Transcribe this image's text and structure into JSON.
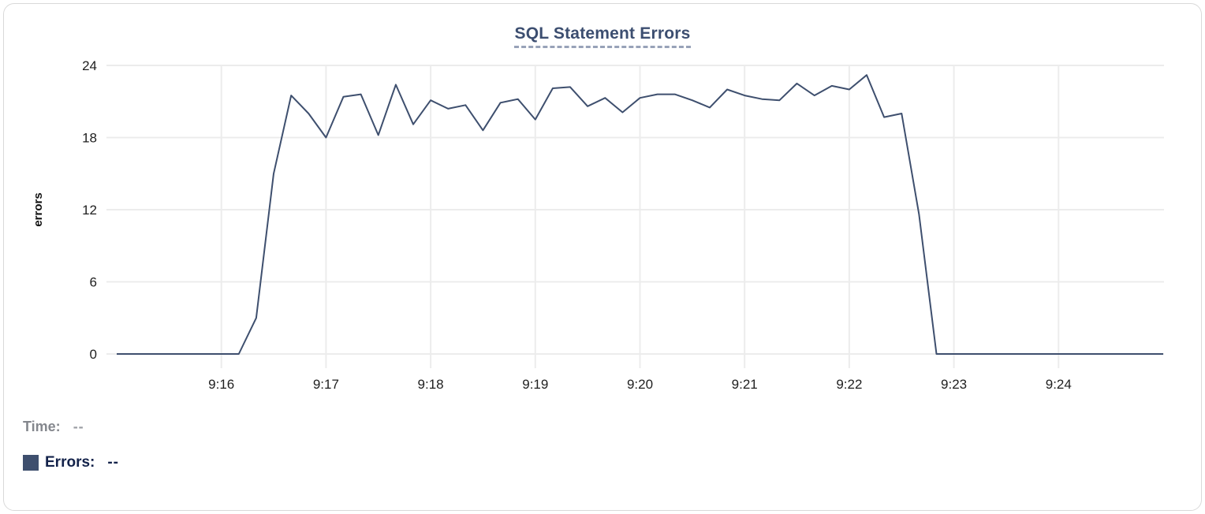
{
  "panel": {
    "title": "SQL Statement Errors"
  },
  "legend": {
    "time_label": "Time:",
    "time_value": "--",
    "errors_label": "Errors:",
    "errors_value": "--"
  },
  "colors": {
    "series": "#3e4f6e",
    "title": "#3c4e70",
    "title_underline": "#98a2b8",
    "grid": "#ececec",
    "tick_text": "#202020",
    "axis_label_text": "#111111",
    "card_border": "#d9d9d9"
  },
  "chart_data": {
    "type": "line",
    "title": "SQL Statement Errors",
    "xlabel": "",
    "ylabel": "errors",
    "ylim": [
      0,
      24
    ],
    "y_ticks": [
      0,
      6,
      12,
      18,
      24
    ],
    "x_tick_labels": [
      "9:16",
      "9:17",
      "9:18",
      "9:19",
      "9:20",
      "9:21",
      "9:22",
      "9:23",
      "9:24"
    ],
    "x_range": [
      "9:15:00",
      "9:25:00"
    ],
    "sampling_interval_seconds": 10,
    "grid": true,
    "legend_position": "bottom-left",
    "series": [
      {
        "name": "Errors",
        "color": "#3e4f6e",
        "times": [
          "9:15:00",
          "9:15:10",
          "9:15:20",
          "9:15:30",
          "9:15:40",
          "9:15:50",
          "9:16:00",
          "9:16:10",
          "9:16:20",
          "9:16:30",
          "9:16:40",
          "9:16:50",
          "9:17:00",
          "9:17:10",
          "9:17:20",
          "9:17:30",
          "9:17:40",
          "9:17:50",
          "9:18:00",
          "9:18:10",
          "9:18:20",
          "9:18:30",
          "9:18:40",
          "9:18:50",
          "9:19:00",
          "9:19:10",
          "9:19:20",
          "9:19:30",
          "9:19:40",
          "9:19:50",
          "9:20:00",
          "9:20:10",
          "9:20:20",
          "9:20:30",
          "9:20:40",
          "9:20:50",
          "9:21:00",
          "9:21:10",
          "9:21:20",
          "9:21:30",
          "9:21:40",
          "9:21:50",
          "9:22:00",
          "9:22:10",
          "9:22:20",
          "9:22:30",
          "9:22:40",
          "9:22:50",
          "9:23:00",
          "9:23:10",
          "9:23:20",
          "9:23:30",
          "9:23:40",
          "9:23:50",
          "9:24:00",
          "9:24:10",
          "9:24:20",
          "9:24:30",
          "9:24:40",
          "9:24:50",
          "9:25:00"
        ],
        "values": [
          0,
          0,
          0,
          0,
          0,
          0,
          0,
          0,
          3,
          15,
          21.5,
          20,
          18,
          21.4,
          21.6,
          18.2,
          22.4,
          19.1,
          21.1,
          20.4,
          20.7,
          18.6,
          20.9,
          21.2,
          19.5,
          22.1,
          22.2,
          20.6,
          21.3,
          20.1,
          21.3,
          21.6,
          21.6,
          21.1,
          20.5,
          22,
          21.5,
          21.2,
          21.1,
          22.5,
          21.5,
          22.3,
          22,
          23.2,
          19.7,
          20,
          11.6,
          0,
          0,
          0,
          0,
          0,
          0,
          0,
          0,
          0,
          0,
          0,
          0,
          0,
          0
        ]
      }
    ]
  }
}
